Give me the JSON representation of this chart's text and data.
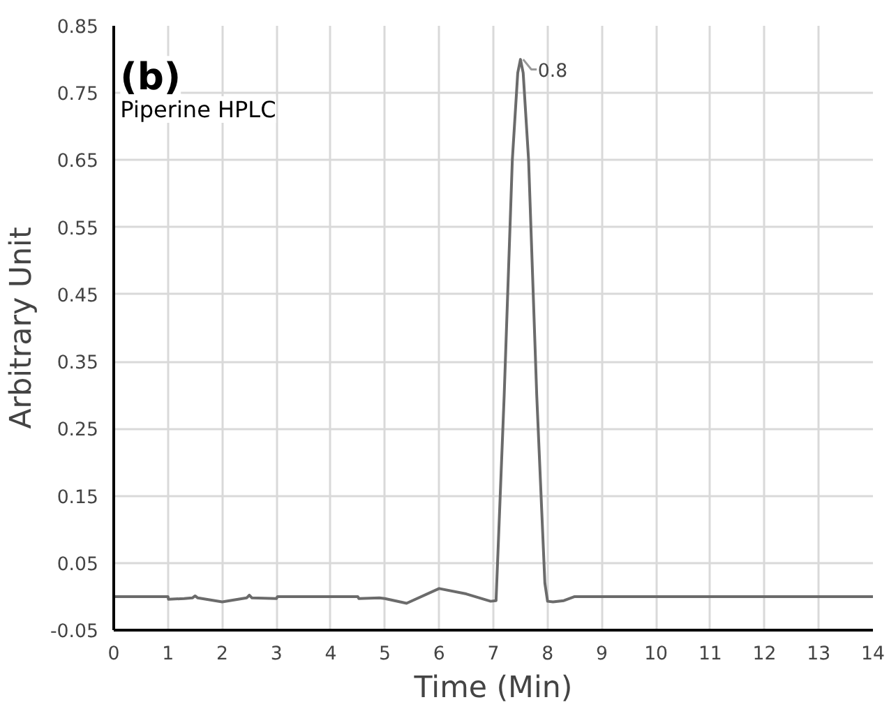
{
  "chart_data": {
    "type": "line",
    "xlabel": "Time (Min)",
    "ylabel": "Arbitrary Unit",
    "annotations": [
      "(b)",
      "Piperine HPLC",
      {
        "text": "0.8",
        "x": 7.5,
        "y": 0.8
      }
    ],
    "x": [
      0,
      1,
      1.01,
      1.3,
      1.45,
      1.5,
      1.55,
      2,
      2.45,
      2.5,
      2.55,
      3,
      3.02,
      4.5,
      4.52,
      4.9,
      5,
      5.4,
      6,
      6.5,
      6.95,
      7.05,
      7.2,
      7.35,
      7.45,
      7.5,
      7.55,
      7.65,
      7.8,
      7.95,
      8.0,
      8.1,
      8.3,
      8.5,
      14
    ],
    "series": [
      {
        "color": "#6b6b6b",
        "values": [
          0,
          0,
          -0.004,
          -0.003,
          -0.002,
          0.001,
          -0.002,
          -0.008,
          -0.002,
          0.002,
          -0.002,
          -0.003,
          0.0,
          0,
          -0.003,
          -0.002,
          -0.003,
          -0.01,
          0.012,
          0.004,
          -0.007,
          -0.006,
          0.3,
          0.65,
          0.78,
          0.8,
          0.78,
          0.65,
          0.3,
          0.02,
          -0.007,
          -0.008,
          -0.006,
          0,
          0
        ]
      }
    ],
    "xlim": [
      0,
      14
    ],
    "ylim": [
      -0.05,
      0.85
    ],
    "xticks": [
      0,
      1,
      2,
      3,
      4,
      5,
      6,
      7,
      8,
      9,
      10,
      11,
      12,
      13,
      14
    ],
    "yticks": [
      -0.05,
      0.05,
      0.15,
      0.25,
      0.35,
      0.45,
      0.55,
      0.65,
      0.75,
      0.85
    ],
    "grid": true,
    "marker": "none",
    "line_style": "solid"
  }
}
